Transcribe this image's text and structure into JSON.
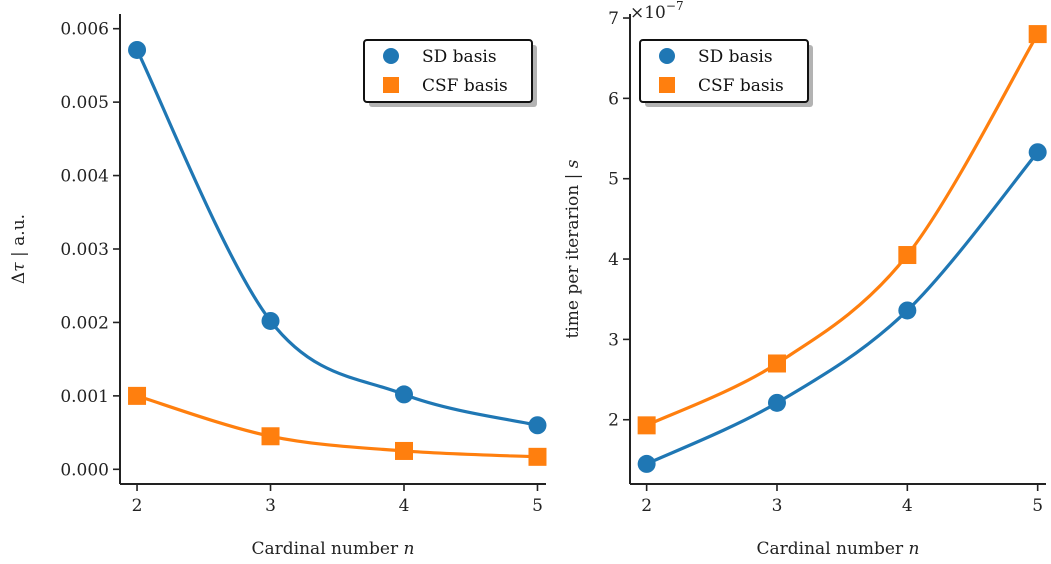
{
  "colors": {
    "sd": "#1f77b4",
    "csf": "#ff7f0e",
    "axis": "#222222"
  },
  "chart_data": [
    {
      "type": "line",
      "markers": true,
      "x": [
        2,
        3,
        4,
        5
      ],
      "xticks": [
        "2",
        "3",
        "4",
        "5"
      ],
      "xlim": [
        1.9,
        5.1
      ],
      "xlabel_text": "Cardinal number ",
      "xlabel_var": "n",
      "ylabel_main": "Δ",
      "ylabel_var": "τ",
      "ylabel_unit": " | a.u.",
      "ylim": [
        -0.0002,
        0.0062
      ],
      "yticks": [
        0.0,
        0.001,
        0.002,
        0.003,
        0.004,
        0.005,
        0.006
      ],
      "ytick_labels": [
        "0.000",
        "0.001",
        "0.002",
        "0.003",
        "0.004",
        "0.005",
        "0.006"
      ],
      "legend_position": "top-right",
      "series": [
        {
          "name": "SD basis",
          "marker": "circle",
          "values": [
            0.00571,
            0.00202,
            0.00102,
            0.0006
          ]
        },
        {
          "name": "CSF basis",
          "marker": "square",
          "values": [
            0.001,
            0.00045,
            0.00025,
            0.00017
          ]
        }
      ]
    },
    {
      "type": "line",
      "markers": true,
      "x": [
        2,
        3,
        4,
        5
      ],
      "xticks": [
        "2",
        "3",
        "4",
        "5"
      ],
      "xlim": [
        1.9,
        5.1
      ],
      "xlabel_text": "Cardinal number ",
      "xlabel_var": "n",
      "ylabel_text": "time per iterarion | ",
      "ylabel_var": "s",
      "sci_base": "×10",
      "sci_exp": "−7",
      "ylim": [
        1.2,
        7.05
      ],
      "yticks": [
        2,
        3,
        4,
        5,
        6,
        7
      ],
      "ytick_labels": [
        "2",
        "3",
        "4",
        "5",
        "6",
        "7"
      ],
      "legend_position": "top-left",
      "series": [
        {
          "name": "SD basis",
          "marker": "circle",
          "values": [
            1.45,
            2.21,
            3.36,
            5.33
          ]
        },
        {
          "name": "CSF basis",
          "marker": "square",
          "values": [
            1.93,
            2.7,
            4.05,
            6.8
          ]
        }
      ]
    }
  ]
}
